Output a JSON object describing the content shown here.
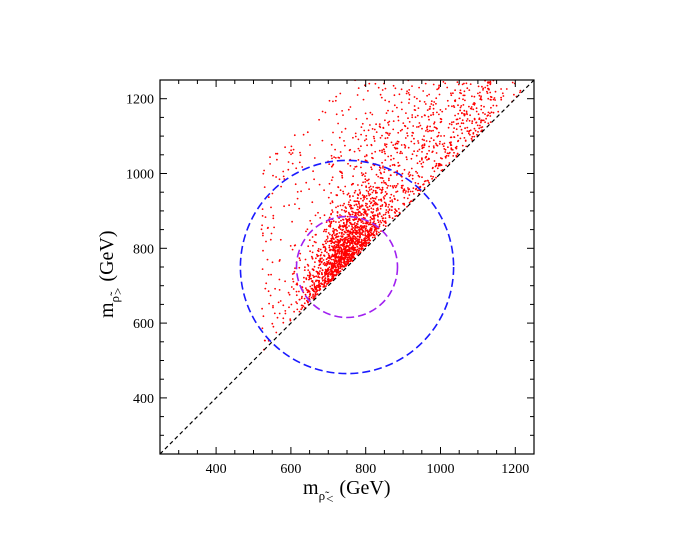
{
  "chart_data": {
    "type": "scatter",
    "title": "",
    "xlabel": {
      "main": "m",
      "sub": "ρ̃",
      "sub2": "<",
      "unit": "(GeV)"
    },
    "ylabel": {
      "main": "m",
      "sub": "ρ̃",
      "sub2": ">",
      "unit": "(GeV)"
    },
    "xlim": [
      250,
      1250
    ],
    "ylim": [
      250,
      1250
    ],
    "x_ticks": [
      400,
      600,
      800,
      1000,
      1200
    ],
    "y_ticks": [
      400,
      600,
      800,
      1000,
      1200
    ],
    "x_tick_labels": [
      "400",
      "600",
      "800",
      "1000",
      "1200"
    ],
    "y_tick_labels": [
      "400",
      "600",
      "800",
      "1000",
      "1200"
    ],
    "grid": false,
    "diagonal": {
      "from": [
        250,
        250
      ],
      "to": [
        1250,
        1250
      ],
      "style": "dashed",
      "color": "#000000"
    },
    "circles": [
      {
        "name": "outer",
        "cx": 750,
        "cy": 750,
        "r": 285,
        "color": "#1a1aff",
        "style": "dashed"
      },
      {
        "name": "inner",
        "cx": 750,
        "cy": 750,
        "r": 135,
        "color": "#a020f0",
        "style": "dashed"
      }
    ],
    "scatter": {
      "color": "#ff0000",
      "approx_count": 2400,
      "region": "y >= x, x from 500 to 1250, y from 500 to 1250",
      "density_center": [
        740,
        800
      ]
    }
  }
}
